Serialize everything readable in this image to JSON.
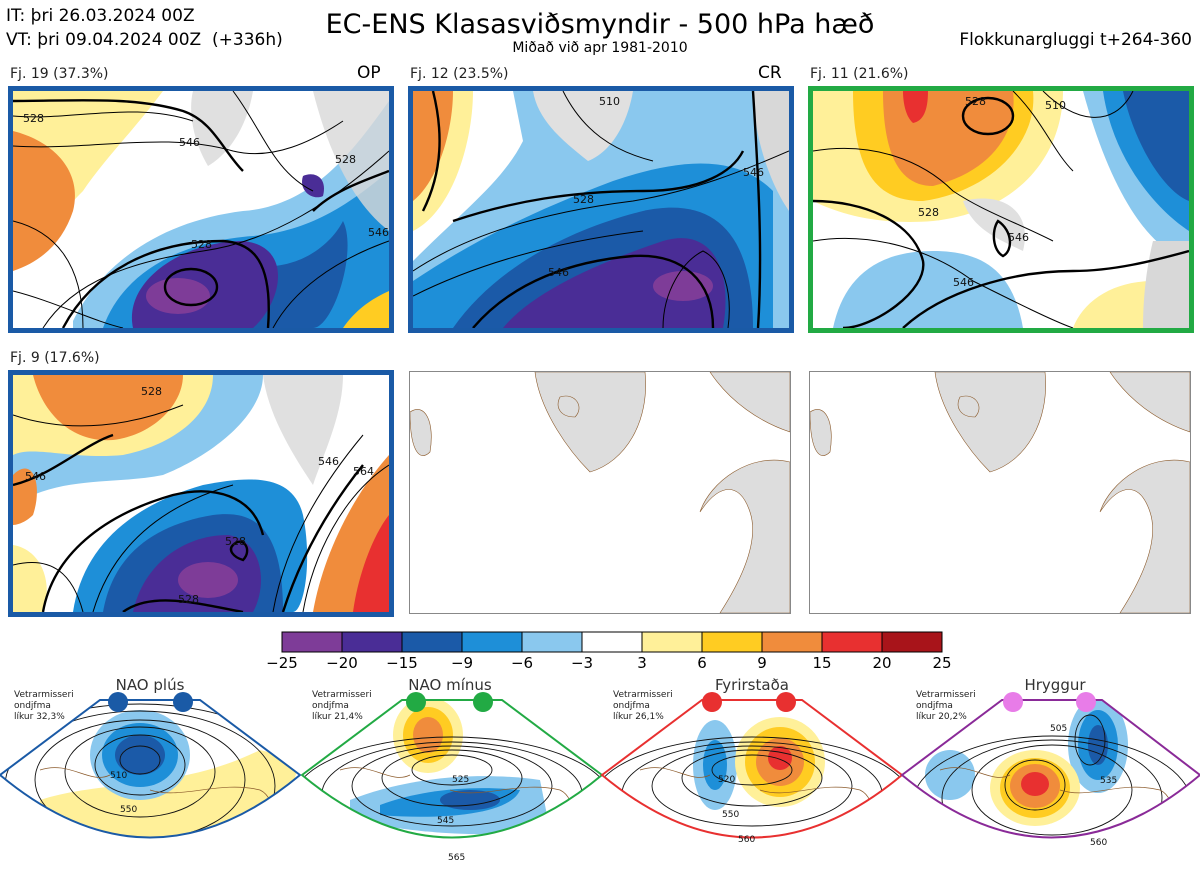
{
  "header": {
    "init_time": "IT: þri 26.03.2024 00Z",
    "valid_time": "VT: þri 09.04.2024 00Z  (+336h)",
    "title": "EC-ENS Klasasviðsmyndir - 500 hPa hæð",
    "subtitle": "Miðað við apr 1981-2010",
    "window": "Flokkunargluggi t+264-360"
  },
  "panels": [
    {
      "label": "Fj. 19 (37.3%)",
      "tag": "OP",
      "border_color": "#1a5aa6",
      "contours": [
        "528",
        "528",
        "546",
        "528",
        "546"
      ]
    },
    {
      "label": "Fj. 12 (23.5%)",
      "tag": "CR",
      "border_color": "#1a5aa6",
      "contours": [
        "510",
        "528",
        "546",
        "546"
      ]
    },
    {
      "label": "Fj. 11 (21.6%)",
      "tag": "",
      "border_color": "#22aa44",
      "contours": [
        "528",
        "510",
        "528",
        "546",
        "546"
      ]
    },
    {
      "label": "Fj. 9 (17.6%)",
      "tag": "",
      "border_color": "#1a5aa6",
      "contours": [
        "528",
        "546",
        "528",
        "546",
        "528",
        "564"
      ]
    }
  ],
  "colorbar": {
    "ticks": [
      "−25",
      "−20",
      "−15",
      "−9",
      "−6",
      "−3",
      "3",
      "6",
      "9",
      "15",
      "20",
      "25"
    ],
    "colors": [
      "#7e3c98",
      "#4a2d96",
      "#1b5aa8",
      "#1e8fd8",
      "#8ac8ee",
      "#ffffff",
      "#fff099",
      "#ffcc22",
      "#f08c3c",
      "#e83030",
      "#a8141a"
    ]
  },
  "regimes": [
    {
      "title": "NAO plús",
      "note": "Vetrarmisseri\nondjfma\nlíkur 32,3%",
      "color": "#1a5aa6",
      "dot": "#1a5aa6",
      "contours": [
        "510",
        "550"
      ]
    },
    {
      "title": "NAO mínus",
      "note": "Vetrarmisseri\nondjfma\nlíkur 21,4%",
      "color": "#22aa44",
      "dot": "#22aa44",
      "contours": [
        "525",
        "545",
        "565"
      ]
    },
    {
      "title": "Fyrirstaða",
      "note": "Vetrarmisseri\nondjfma\nlíkur 26,1%",
      "color": "#e83030",
      "dot": "#e83030",
      "contours": [
        "520",
        "550",
        "560"
      ]
    },
    {
      "title": "Hryggur",
      "note": "Vetrarmisseri\nondjfma\nlíkur 20,2%",
      "color": "#8a2a98",
      "dot": "#e87ce8",
      "contours": [
        "505",
        "535",
        "560"
      ]
    }
  ]
}
